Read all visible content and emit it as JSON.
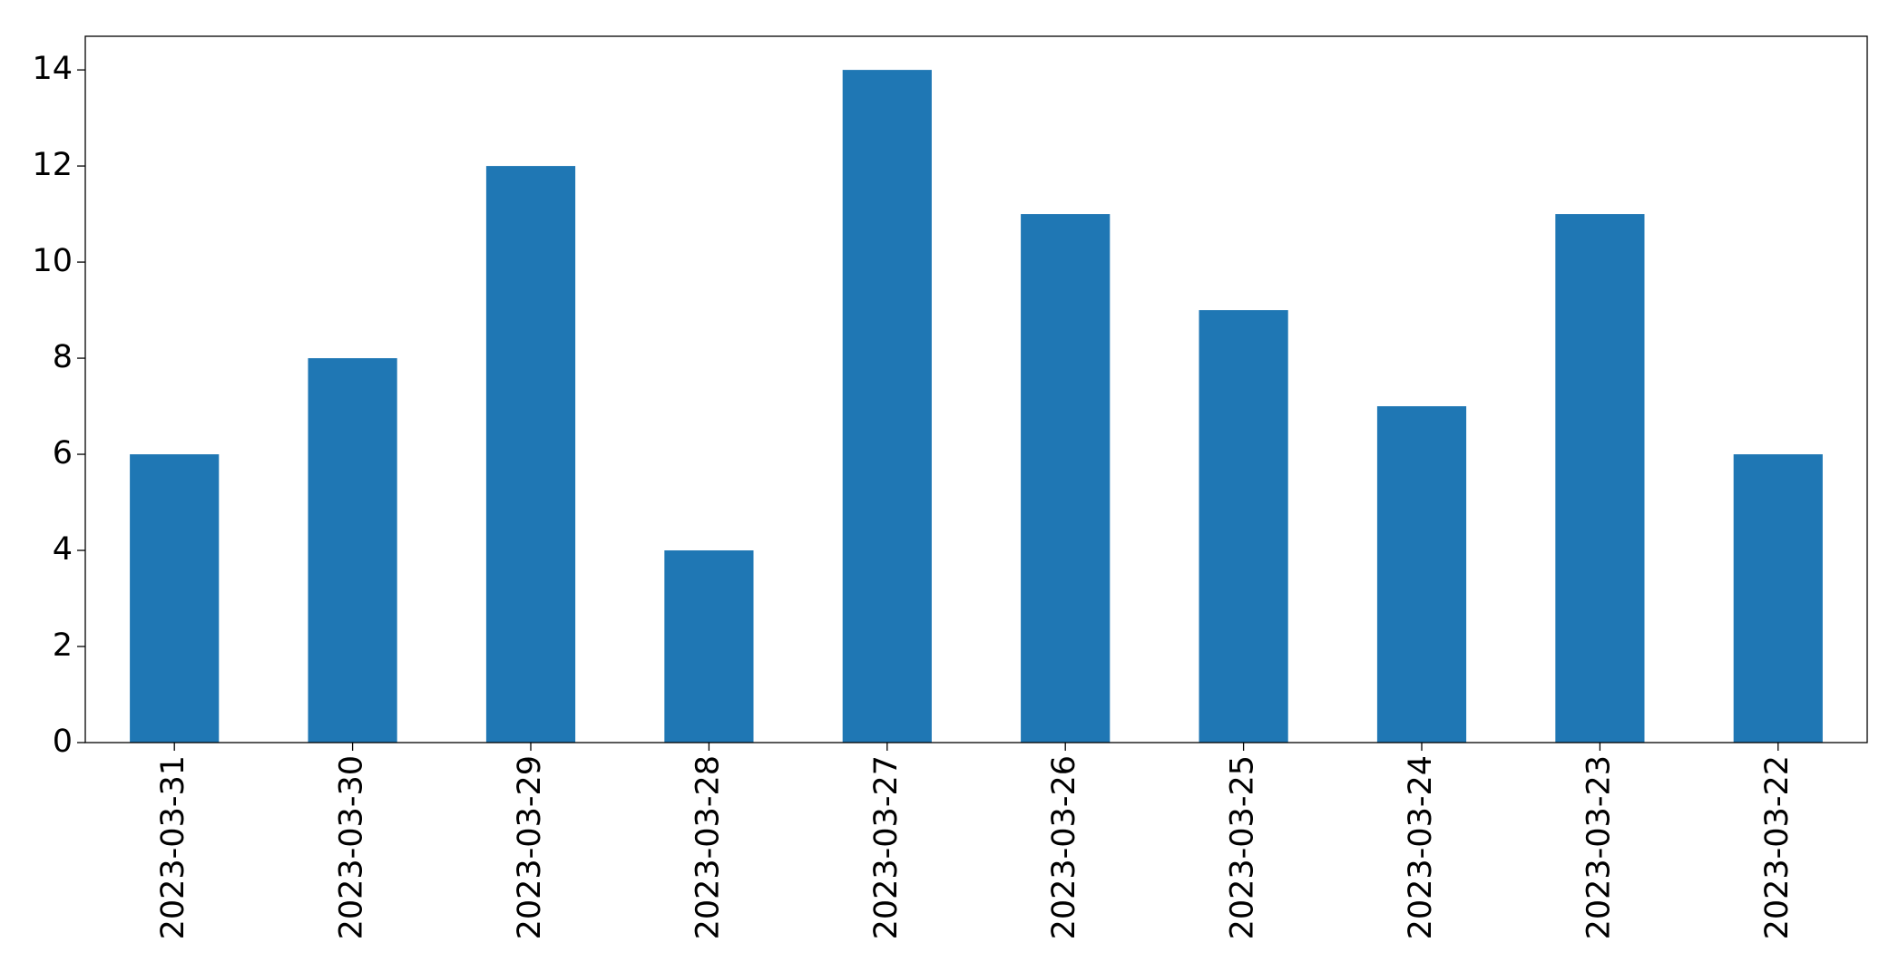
{
  "chart_data": {
    "type": "bar",
    "categories": [
      "2023-03-31",
      "2023-03-30",
      "2023-03-29",
      "2023-03-28",
      "2023-03-27",
      "2023-03-26",
      "2023-03-25",
      "2023-03-24",
      "2023-03-23",
      "2023-03-22"
    ],
    "values": [
      6,
      8,
      12,
      4,
      14,
      11,
      9,
      7,
      11,
      6
    ],
    "color": "#1f77b4",
    "ylim": [
      0,
      14.7
    ],
    "yticks": [
      0,
      2,
      4,
      6,
      8,
      10,
      12,
      14
    ],
    "grid": false
  }
}
